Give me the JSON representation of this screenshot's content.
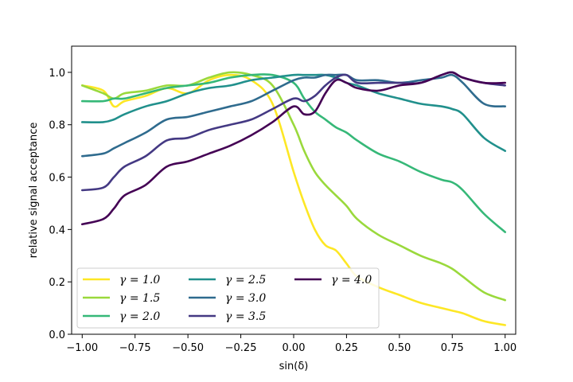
{
  "chart_data": {
    "type": "line",
    "xlabel": "sin(δ)",
    "ylabel": "relative signal acceptance",
    "xlim": [
      -1.05,
      1.05
    ],
    "ylim": [
      0.0,
      1.1
    ],
    "xticks": [
      -1.0,
      -0.75,
      -0.5,
      -0.25,
      0.0,
      0.25,
      0.5,
      0.75,
      1.0
    ],
    "xtick_labels": [
      "−1.00",
      "−0.75",
      "−0.50",
      "−0.25",
      "0.00",
      "0.25",
      "0.50",
      "0.75",
      "1.00"
    ],
    "yticks": [
      0.0,
      0.2,
      0.4,
      0.6,
      0.8,
      1.0
    ],
    "ytick_labels": [
      "0.0",
      "0.2",
      "0.4",
      "0.6",
      "0.8",
      "1.0"
    ],
    "grid": false,
    "legend_placement": "lower-left",
    "x": [
      -1.0,
      -0.9,
      -0.85,
      -0.8,
      -0.7,
      -0.6,
      -0.5,
      -0.4,
      -0.3,
      -0.2,
      -0.1,
      0.0,
      0.05,
      0.1,
      0.15,
      0.2,
      0.25,
      0.3,
      0.4,
      0.5,
      0.6,
      0.7,
      0.75,
      0.8,
      0.9,
      1.0
    ],
    "series": [
      {
        "name": "γ = 1.0",
        "color": "#fde725",
        "values": [
          0.95,
          0.93,
          0.87,
          0.89,
          0.91,
          0.94,
          0.92,
          0.97,
          0.99,
          0.97,
          0.88,
          0.62,
          0.5,
          0.4,
          0.34,
          0.32,
          0.27,
          0.22,
          0.18,
          0.15,
          0.12,
          0.1,
          0.09,
          0.08,
          0.05,
          0.035
        ]
      },
      {
        "name": "γ = 1.5",
        "color": "#9ad93c",
        "values": [
          0.95,
          0.92,
          0.9,
          0.92,
          0.93,
          0.95,
          0.95,
          0.98,
          1.0,
          0.99,
          0.95,
          0.8,
          0.7,
          0.62,
          0.57,
          0.53,
          0.49,
          0.44,
          0.38,
          0.34,
          0.3,
          0.27,
          0.25,
          0.22,
          0.16,
          0.13
        ]
      },
      {
        "name": "γ = 2.0",
        "color": "#36b878",
        "values": [
          0.89,
          0.89,
          0.9,
          0.9,
          0.92,
          0.94,
          0.95,
          0.96,
          0.98,
          0.99,
          0.99,
          0.96,
          0.9,
          0.85,
          0.82,
          0.79,
          0.77,
          0.74,
          0.69,
          0.66,
          0.62,
          0.59,
          0.58,
          0.55,
          0.46,
          0.39
        ]
      },
      {
        "name": "γ = 2.5",
        "color": "#21908c",
        "values": [
          0.81,
          0.81,
          0.82,
          0.84,
          0.87,
          0.89,
          0.92,
          0.94,
          0.95,
          0.97,
          0.98,
          0.99,
          0.99,
          0.99,
          0.99,
          0.98,
          0.96,
          0.95,
          0.92,
          0.9,
          0.88,
          0.87,
          0.86,
          0.84,
          0.75,
          0.7
        ]
      },
      {
        "name": "γ = 3.0",
        "color": "#2f6b8e",
        "values": [
          0.68,
          0.69,
          0.71,
          0.73,
          0.77,
          0.82,
          0.83,
          0.85,
          0.87,
          0.89,
          0.93,
          0.97,
          0.98,
          0.98,
          0.99,
          0.99,
          0.99,
          0.97,
          0.97,
          0.96,
          0.97,
          0.98,
          0.99,
          0.96,
          0.88,
          0.87
        ]
      },
      {
        "name": "γ = 3.5",
        "color": "#443983",
        "values": [
          0.55,
          0.56,
          0.6,
          0.64,
          0.68,
          0.74,
          0.75,
          0.78,
          0.8,
          0.82,
          0.86,
          0.9,
          0.89,
          0.91,
          0.95,
          0.98,
          0.99,
          0.96,
          0.96,
          0.96,
          0.96,
          0.99,
          1.0,
          0.98,
          0.96,
          0.95
        ]
      },
      {
        "name": "γ = 4.0",
        "color": "#440154",
        "values": [
          0.42,
          0.44,
          0.48,
          0.53,
          0.57,
          0.64,
          0.66,
          0.69,
          0.72,
          0.76,
          0.81,
          0.87,
          0.84,
          0.85,
          0.92,
          0.97,
          0.96,
          0.94,
          0.93,
          0.95,
          0.96,
          0.99,
          1.0,
          0.98,
          0.96,
          0.96
        ]
      }
    ]
  }
}
